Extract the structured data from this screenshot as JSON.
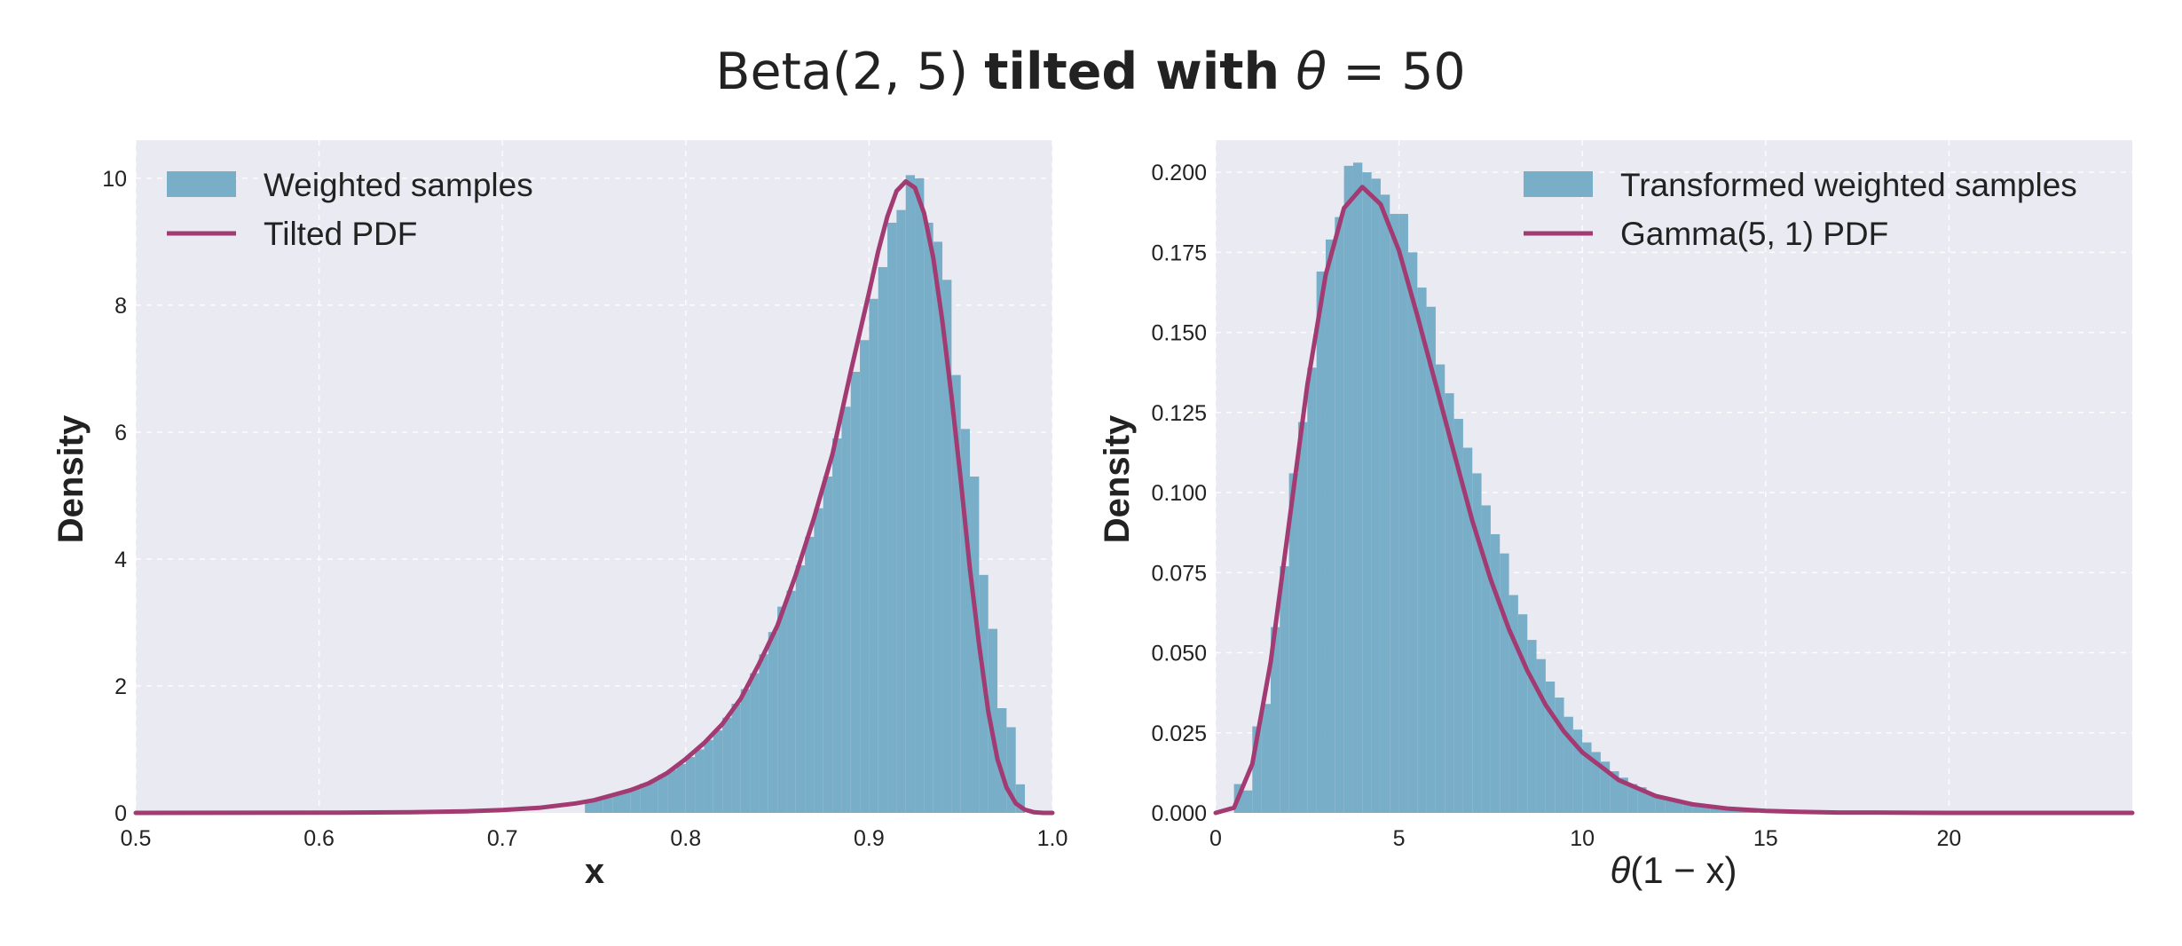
{
  "figure": {
    "title_prefix": "Beta(2, 5)",
    "title_bold": "tilted with",
    "title_math_symbol": "θ",
    "title_math_rest": " = 50"
  },
  "colors": {
    "background": "#eaeaf2",
    "bar": "#79aec8",
    "line": "#a23b72",
    "grid": "#ffffff",
    "text": "#222222"
  },
  "chart_data": [
    {
      "type": "bar",
      "overlay_type": "line",
      "xlabel": "x",
      "ylabel": "Density",
      "xlim": [
        0.5,
        1.0
      ],
      "ylim": [
        0,
        10.6
      ],
      "xticks": [
        0.5,
        0.6,
        0.7,
        0.8,
        0.9,
        1.0
      ],
      "xtick_labels": [
        "0.5",
        "0.6",
        "0.7",
        "0.8",
        "0.9",
        "1.0"
      ],
      "yticks": [
        0,
        2,
        4,
        6,
        8,
        10
      ],
      "ytick_labels": [
        "0",
        "2",
        "4",
        "6",
        "8",
        "10"
      ],
      "grid": true,
      "legend_position": "upper-left",
      "series": [
        {
          "name": "Weighted samples",
          "kind": "histogram",
          "bin_width": 0.005,
          "bins": [
            [
              0.745,
              0.2
            ],
            [
              0.75,
              0.23
            ],
            [
              0.755,
              0.27
            ],
            [
              0.76,
              0.3
            ],
            [
              0.765,
              0.35
            ],
            [
              0.77,
              0.4
            ],
            [
              0.775,
              0.46
            ],
            [
              0.78,
              0.52
            ],
            [
              0.785,
              0.6
            ],
            [
              0.79,
              0.68
            ],
            [
              0.795,
              0.77
            ],
            [
              0.8,
              0.88
            ],
            [
              0.805,
              1.0
            ],
            [
              0.81,
              1.15
            ],
            [
              0.815,
              1.3
            ],
            [
              0.82,
              1.5
            ],
            [
              0.825,
              1.72
            ],
            [
              0.83,
              1.95
            ],
            [
              0.835,
              2.2
            ],
            [
              0.84,
              2.5
            ],
            [
              0.845,
              2.85
            ],
            [
              0.85,
              3.25
            ],
            [
              0.855,
              3.5
            ],
            [
              0.86,
              3.9
            ],
            [
              0.865,
              4.35
            ],
            [
              0.87,
              4.8
            ],
            [
              0.875,
              5.3
            ],
            [
              0.88,
              5.9
            ],
            [
              0.885,
              6.4
            ],
            [
              0.89,
              6.95
            ],
            [
              0.895,
              7.45
            ],
            [
              0.9,
              8.1
            ],
            [
              0.905,
              8.6
            ],
            [
              0.91,
              9.3
            ],
            [
              0.915,
              9.5
            ],
            [
              0.92,
              10.05
            ],
            [
              0.925,
              10.0
            ],
            [
              0.93,
              9.3
            ],
            [
              0.935,
              9.0
            ],
            [
              0.94,
              8.4
            ],
            [
              0.945,
              6.9
            ],
            [
              0.95,
              6.05
            ],
            [
              0.955,
              5.3
            ],
            [
              0.96,
              3.75
            ],
            [
              0.965,
              2.9
            ],
            [
              0.97,
              1.65
            ],
            [
              0.975,
              1.35
            ],
            [
              0.98,
              0.45
            ]
          ]
        },
        {
          "name": "Tilted PDF",
          "kind": "line",
          "x": [
            0.5,
            0.55,
            0.6,
            0.65,
            0.68,
            0.7,
            0.72,
            0.74,
            0.75,
            0.76,
            0.77,
            0.78,
            0.79,
            0.8,
            0.81,
            0.82,
            0.83,
            0.84,
            0.85,
            0.86,
            0.87,
            0.88,
            0.89,
            0.9,
            0.905,
            0.91,
            0.915,
            0.92,
            0.925,
            0.93,
            0.935,
            0.94,
            0.945,
            0.95,
            0.955,
            0.96,
            0.965,
            0.97,
            0.975,
            0.98,
            0.985,
            0.99,
            0.995,
            1.0
          ],
          "y": [
            0.0,
            0.001,
            0.003,
            0.01,
            0.025,
            0.045,
            0.08,
            0.15,
            0.2,
            0.28,
            0.36,
            0.47,
            0.63,
            0.85,
            1.1,
            1.4,
            1.8,
            2.35,
            2.95,
            3.75,
            4.65,
            5.65,
            6.95,
            8.2,
            8.85,
            9.4,
            9.8,
            9.95,
            9.85,
            9.45,
            8.75,
            7.75,
            6.55,
            5.25,
            3.85,
            2.65,
            1.6,
            0.85,
            0.4,
            0.15,
            0.05,
            0.01,
            0.0,
            0.0
          ]
        }
      ]
    },
    {
      "type": "bar",
      "overlay_type": "line",
      "xlabel_symbol": "θ",
      "xlabel_rest": "(1 − x)",
      "ylabel": "Density",
      "xlim": [
        0,
        25
      ],
      "ylim": [
        0,
        0.21
      ],
      "xticks": [
        0,
        5,
        10,
        15,
        20
      ],
      "xtick_labels": [
        "0",
        "5",
        "10",
        "15",
        "20"
      ],
      "yticks": [
        0,
        0.025,
        0.05,
        0.075,
        0.1,
        0.125,
        0.15,
        0.175,
        0.2
      ],
      "ytick_labels": [
        "0.000",
        "0.025",
        "0.050",
        "0.075",
        "0.100",
        "0.125",
        "0.150",
        "0.175",
        "0.200"
      ],
      "grid": true,
      "legend_position": "upper-right",
      "series": [
        {
          "name": "Transformed weighted samples",
          "kind": "histogram",
          "bin_width": 0.25,
          "bins": [
            [
              0.5,
              0.009
            ],
            [
              0.75,
              0.007
            ],
            [
              1.0,
              0.027
            ],
            [
              1.25,
              0.034
            ],
            [
              1.5,
              0.058
            ],
            [
              1.75,
              0.077
            ],
            [
              2.0,
              0.106
            ],
            [
              2.25,
              0.122
            ],
            [
              2.5,
              0.139
            ],
            [
              2.75,
              0.169
            ],
            [
              3.0,
              0.179
            ],
            [
              3.25,
              0.186
            ],
            [
              3.5,
              0.202
            ],
            [
              3.75,
              0.203
            ],
            [
              4.0,
              0.2
            ],
            [
              4.25,
              0.198
            ],
            [
              4.5,
              0.193
            ],
            [
              4.75,
              0.187
            ],
            [
              5.0,
              0.187
            ],
            [
              5.25,
              0.175
            ],
            [
              5.5,
              0.164
            ],
            [
              5.75,
              0.158
            ],
            [
              6.0,
              0.14
            ],
            [
              6.25,
              0.131
            ],
            [
              6.5,
              0.123
            ],
            [
              6.75,
              0.114
            ],
            [
              7.0,
              0.106
            ],
            [
              7.25,
              0.096
            ],
            [
              7.5,
              0.087
            ],
            [
              7.75,
              0.081
            ],
            [
              8.0,
              0.068
            ],
            [
              8.25,
              0.062
            ],
            [
              8.5,
              0.054
            ],
            [
              8.75,
              0.048
            ],
            [
              9.0,
              0.041
            ],
            [
              9.25,
              0.036
            ],
            [
              9.5,
              0.03
            ],
            [
              9.75,
              0.026
            ],
            [
              10.0,
              0.022
            ],
            [
              10.25,
              0.019
            ],
            [
              10.5,
              0.016
            ],
            [
              10.75,
              0.013
            ],
            [
              11.0,
              0.011
            ],
            [
              11.25,
              0.009
            ],
            [
              11.5,
              0.008
            ],
            [
              11.75,
              0.006
            ],
            [
              12.0,
              0.005
            ],
            [
              12.25,
              0.004
            ],
            [
              12.5,
              0.0035
            ],
            [
              12.75,
              0.003
            ],
            [
              13.0,
              0.0025
            ],
            [
              13.25,
              0.002
            ],
            [
              13.5,
              0.0015
            ],
            [
              13.75,
              0.001
            ],
            [
              14.0,
              0.001
            ],
            [
              14.25,
              0.0008
            ],
            [
              14.5,
              0.0006
            ]
          ]
        },
        {
          "name": "Gamma(5, 1) PDF",
          "kind": "line",
          "x": [
            0.0,
            0.5,
            1.0,
            1.5,
            2.0,
            2.5,
            3.0,
            3.5,
            4.0,
            4.5,
            5.0,
            5.5,
            6.0,
            6.5,
            7.0,
            7.5,
            8.0,
            8.5,
            9.0,
            9.5,
            10.0,
            11.0,
            12.0,
            13.0,
            14.0,
            15.0,
            16.0,
            17.0,
            18.0,
            20.0,
            22.0,
            25.0
          ],
          "y": [
            0.0,
            0.0016,
            0.0153,
            0.0471,
            0.0902,
            0.1336,
            0.168,
            0.1888,
            0.1954,
            0.19,
            0.1755,
            0.1552,
            0.1339,
            0.1124,
            0.0912,
            0.0729,
            0.0573,
            0.0444,
            0.0337,
            0.0254,
            0.0189,
            0.0102,
            0.0053,
            0.0027,
            0.0013,
            0.0006,
            0.0003,
            0.0001,
            0.0001,
            0.0,
            0.0,
            0.0
          ]
        }
      ]
    }
  ]
}
